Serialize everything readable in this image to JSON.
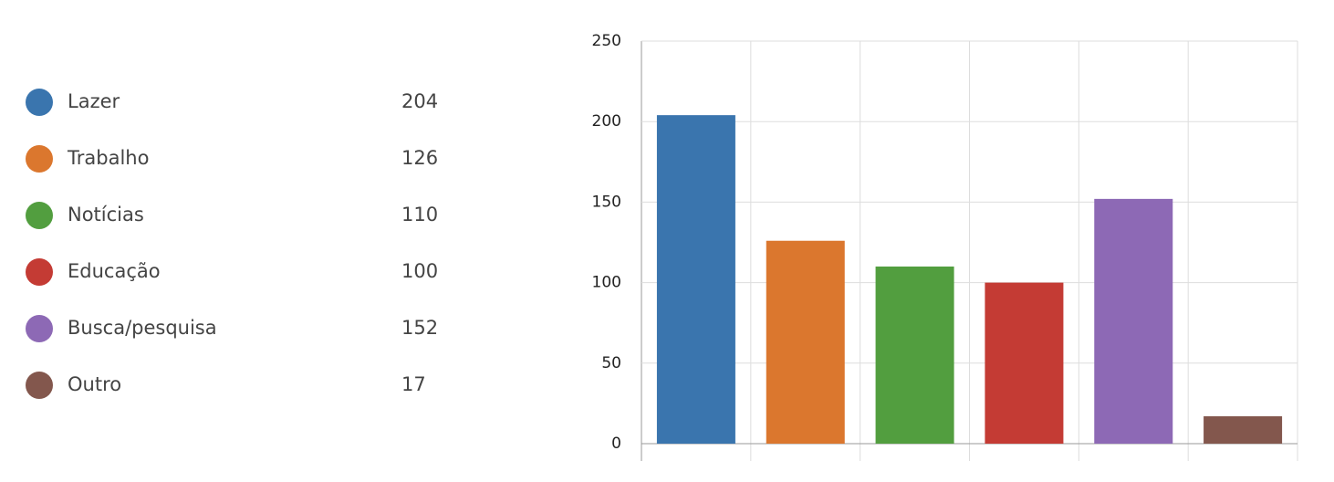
{
  "chart_data": {
    "type": "bar",
    "categories": [
      "Lazer",
      "Trabalho",
      "Notícias",
      "Educação",
      "Busca/pesquisa",
      "Outro"
    ],
    "values": [
      204,
      126,
      110,
      100,
      152,
      17
    ],
    "colors": [
      "#3a75ae",
      "#db772e",
      "#529e3f",
      "#c43b34",
      "#8d69b5",
      "#83574d"
    ],
    "ylim": [
      0,
      250
    ],
    "yticks": [
      0,
      50,
      100,
      150,
      200,
      250
    ],
    "grid": true
  }
}
